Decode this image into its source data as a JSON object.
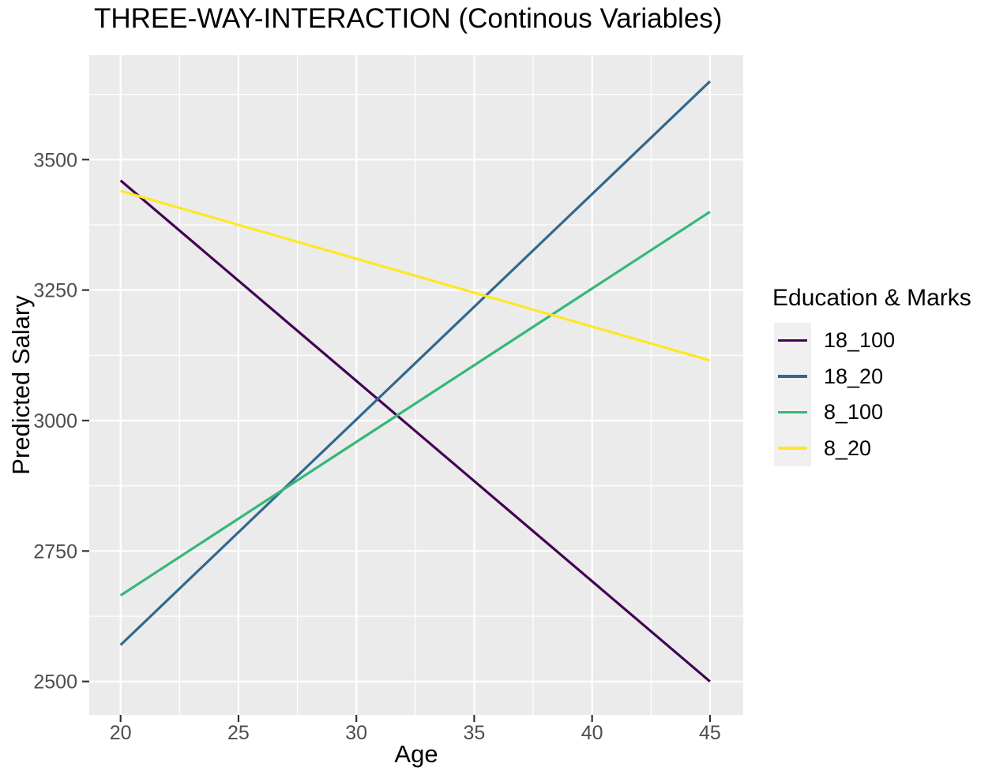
{
  "chart_data": {
    "type": "line",
    "title": "THREE-WAY-INTERACTION (Continous Variables)",
    "xlabel": "Age",
    "ylabel": "Predicted Salary",
    "legend_title": "Education & Marks",
    "legend_position": "right",
    "grid": true,
    "x": [
      20,
      45
    ],
    "series": [
      {
        "name": "18_100",
        "color": "#440154",
        "values": [
          3460,
          2500
        ]
      },
      {
        "name": "18_20",
        "color": "#31688E",
        "values": [
          2570,
          3650
        ]
      },
      {
        "name": "8_100",
        "color": "#35B779",
        "values": [
          2665,
          3400
        ]
      },
      {
        "name": "8_20",
        "color": "#FDE725",
        "values": [
          3440,
          3115
        ]
      }
    ],
    "x_ticks": [
      20,
      25,
      30,
      35,
      40,
      45
    ],
    "x_minor_ticks": [
      22.5,
      27.5,
      32.5,
      37.5,
      42.5
    ],
    "y_ticks": [
      2500,
      2750,
      3000,
      3250,
      3500
    ],
    "y_minor_ticks": [
      2625,
      2875,
      3125,
      3375,
      3625
    ],
    "xlim": [
      18.67,
      46.41
    ],
    "ylim": [
      2436,
      3700
    ],
    "theme": {
      "panel_bg": "#EBEBEB",
      "grid_color": "#FFFFFF",
      "axis_tick_color": "#333333",
      "tick_label_color": "#4D4D4D",
      "text_color": "#000000",
      "legend_key_bg": "#F0F0F0"
    }
  }
}
